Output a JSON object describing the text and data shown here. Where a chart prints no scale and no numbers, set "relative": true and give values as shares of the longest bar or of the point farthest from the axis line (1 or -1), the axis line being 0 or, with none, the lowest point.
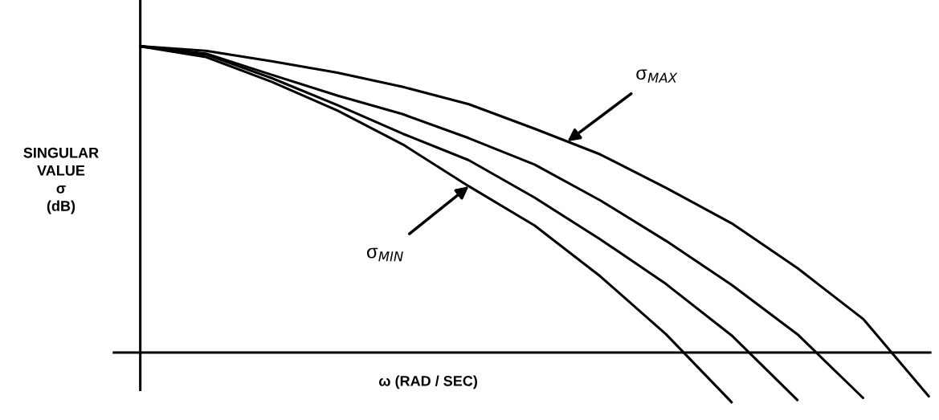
{
  "chart_data": {
    "type": "line",
    "relative": true,
    "xlabel": "ω (RAD / SEC)",
    "ylabel": "SINGULAR\nVALUE\nσ\n(dB)",
    "marker": "none",
    "line_style": "solid",
    "legend": false,
    "categories": [
      null,
      null,
      null,
      null,
      null,
      null,
      null,
      null,
      null,
      null,
      null,
      null,
      null
    ],
    "series": [
      {
        "color": "#000000",
        "values": [
          1.0,
          0.965,
          0.884,
          0.79,
          0.679,
          0.543,
          0.415,
          0.249,
          0.06,
          -0.162,
          null,
          null,
          null
        ]
      },
      {
        "color": "#000000",
        "values": [
          1.0,
          0.973,
          0.896,
          0.808,
          0.714,
          0.628,
          0.506,
          0.37,
          0.224,
          0.056,
          -0.155,
          null,
          null
        ]
      },
      {
        "color": "#000000",
        "values": [
          1.0,
          0.976,
          0.907,
          0.839,
          0.778,
          0.7,
          0.614,
          0.497,
          0.365,
          0.221,
          0.06,
          -0.148,
          null
        ]
      },
      {
        "color": "#000000",
        "values": [
          1.0,
          0.985,
          0.951,
          0.914,
          0.867,
          0.811,
          0.731,
          0.647,
          0.538,
          0.422,
          0.276,
          0.11,
          -0.143
        ]
      }
    ],
    "annotations": [
      "σ$_{MAX}$",
      "σ$_{MIN}$"
    ]
  }
}
